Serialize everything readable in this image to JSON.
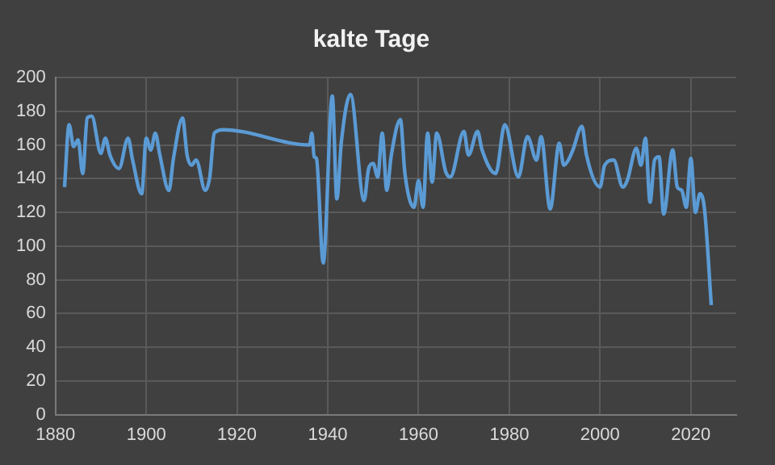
{
  "chart_data": {
    "type": "line",
    "title": "kalte Tage",
    "x": [
      1882,
      1883,
      1884,
      1885,
      1886,
      1887,
      1888,
      1890,
      1891,
      1892,
      1894,
      1896,
      1897,
      1899,
      1900,
      1901,
      1902,
      1903,
      1905,
      1906,
      1908,
      1909,
      1910,
      1911,
      1913,
      1914,
      1915,
      1917,
      1936,
      1936.5,
      1937,
      1937.5,
      1939,
      1941,
      1942,
      1943,
      1945,
      1948,
      1949,
      1950,
      1951,
      1952,
      1953,
      1954,
      1956,
      1957,
      1959,
      1960,
      1961,
      1962,
      1963,
      1964,
      1966,
      1967,
      1970,
      1971,
      1973,
      1974,
      1977,
      1979,
      1982,
      1984,
      1986,
      1987,
      1989,
      1991,
      1992,
      1993,
      1994,
      1996,
      1997,
      2000,
      2001,
      2003,
      2005,
      2006,
      2008,
      2009,
      2010,
      2011,
      2012,
      2013,
      2014,
      2016,
      2017,
      2018,
      2019,
      2020,
      2021,
      2022,
      2023,
      2024.5
    ],
    "series": [
      {
        "color": "#5b9bd5",
        "values": [
          135,
          172,
          159,
          163,
          143,
          176,
          177,
          155,
          164,
          154,
          146,
          164,
          151,
          131,
          164,
          157,
          167,
          154,
          133,
          152,
          176,
          154,
          148,
          151,
          133,
          141,
          167,
          169,
          160,
          167,
          153,
          152,
          90,
          189,
          128,
          162,
          190,
          127,
          146,
          149,
          141,
          167,
          133,
          154,
          175,
          143,
          123,
          139,
          123,
          167,
          138,
          167,
          144,
          141,
          168,
          154,
          168,
          157,
          143,
          172,
          141,
          165,
          151,
          165,
          122,
          161,
          148,
          151,
          157,
          171,
          154,
          135,
          148,
          151,
          135,
          139,
          158,
          148,
          164,
          126,
          151,
          153,
          119,
          157,
          135,
          133,
          123,
          152,
          120,
          131,
          122,
          65
        ]
      }
    ],
    "xlim": [
      1880,
      2030
    ],
    "xticks": [
      1880,
      1900,
      1920,
      1940,
      1960,
      1980,
      2000,
      2020
    ],
    "ylim": [
      0,
      200
    ],
    "yticks": [
      0,
      20,
      40,
      60,
      80,
      100,
      120,
      140,
      160,
      180,
      200
    ],
    "grid": true,
    "legend": false,
    "marker": "none",
    "line_style": "solid"
  }
}
